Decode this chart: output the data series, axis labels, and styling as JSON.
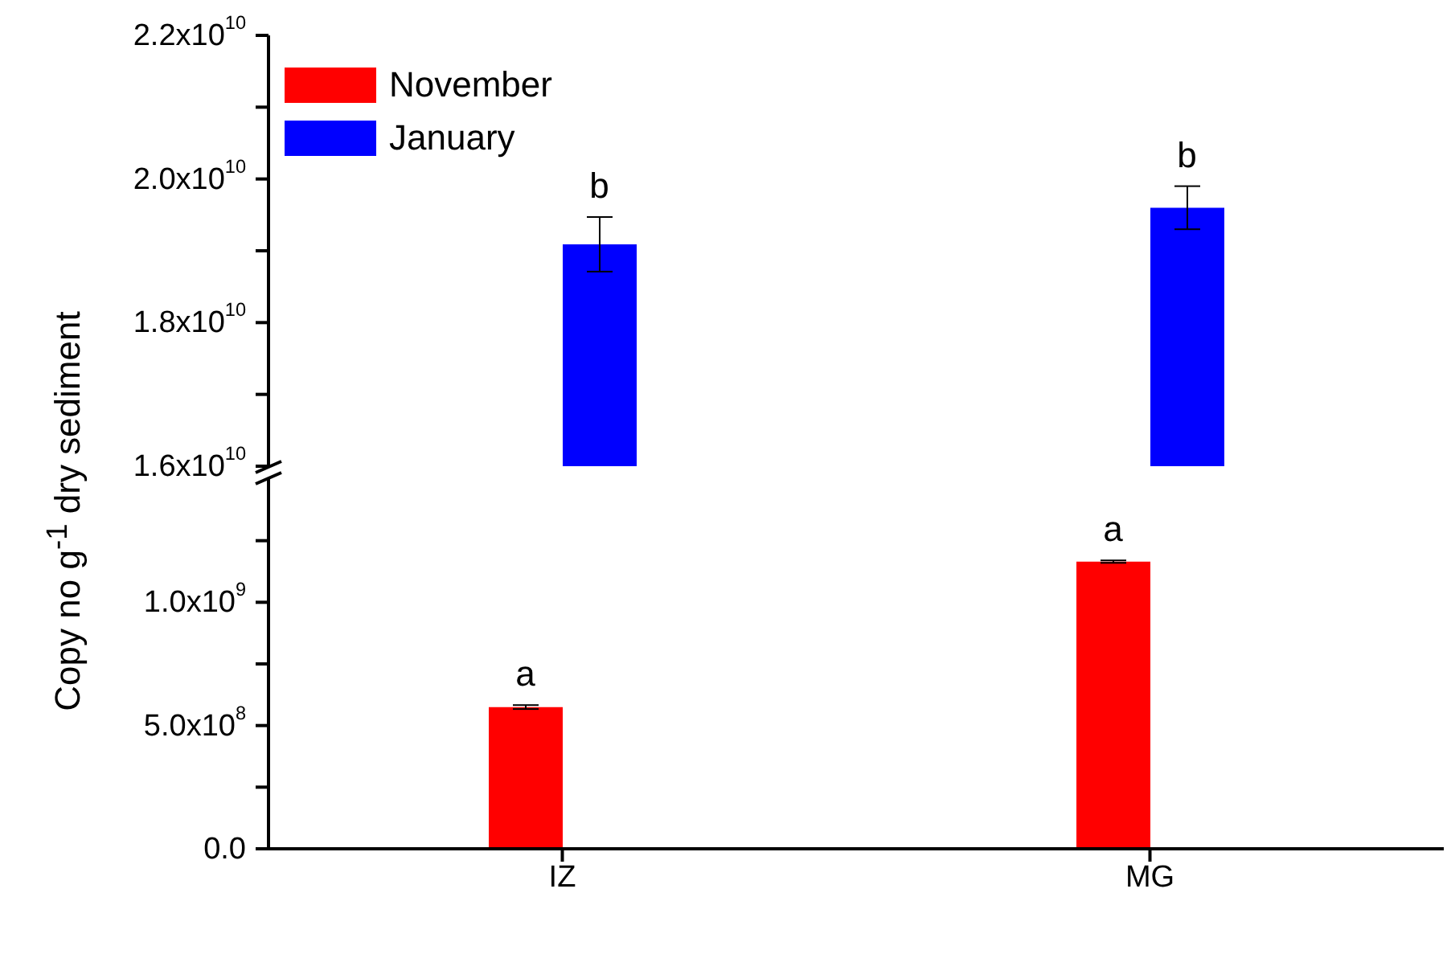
{
  "chart_data": [
    {
      "type": "bar",
      "ylabel": "Copy no g$^{-1}$ dry sediment",
      "categories": [
        "IZ",
        "MG"
      ],
      "legend": "top left",
      "tick_labels": "y",
      "series": [
        {
          "name": "November",
          "color": "#ff0000",
          "values": [
            null,
            null
          ]
        },
        {
          "name": "January",
          "color": "#0000ff",
          "values": [
            19090000000.0,
            19600000000.0
          ],
          "errors": [
            380000000.0,
            300000000.0
          ]
        }
      ],
      "ylim": [
        16000000000.0,
        22000000000.0
      ],
      "yticks": [
        {
          "value": 16000000000.0,
          "label": "1.6x10$^{10}$"
        },
        {
          "value": 17000000000.0,
          "label": null
        },
        {
          "value": 18000000000.0,
          "label": "1.8x10$^{10}$"
        },
        {
          "value": 19000000000.0,
          "label": null
        },
        {
          "value": 20000000000.0,
          "label": "2.0x10$^{10}$"
        },
        {
          "value": 21000000000.0,
          "label": null
        },
        {
          "value": 22000000000.0,
          "label": "2.2x10$^{10}$"
        }
      ],
      "annotations": [
        {
          "text": "b",
          "x": "IZ",
          "y": 19090000000.0
        },
        {
          "text": "b",
          "x": "MG",
          "y": 19600000000.0
        }
      ]
    },
    {
      "type": "bar",
      "categories": [
        "IZ",
        "MG"
      ],
      "series": [
        {
          "color": "#ff0000",
          "values": [
            575000000.0,
            1165000000.0
          ],
          "errors": [
            8000000.0,
            5000000.0
          ]
        },
        {
          "color": "#0000ff",
          "values": [
            null,
            null
          ]
        }
      ],
      "ylim": [
        0,
        1500000000.0
      ],
      "yticks": [
        {
          "value": 0,
          "label": "0.0"
        },
        {
          "value": 250000000.0,
          "label": null
        },
        {
          "value": 500000000.0,
          "label": "5.0x10$^{8}$"
        },
        {
          "value": 750000000.0,
          "label": null
        },
        {
          "value": 1000000000.0,
          "label": "1.0x10$^{9}$"
        },
        {
          "value": 1250000000.0,
          "label": null
        }
      ],
      "annotations": [
        {
          "text": "a",
          "x": "IZ",
          "y": 575000000.0
        },
        {
          "text": "a",
          "x": "MG",
          "y": 1165000000.0
        }
      ]
    }
  ]
}
